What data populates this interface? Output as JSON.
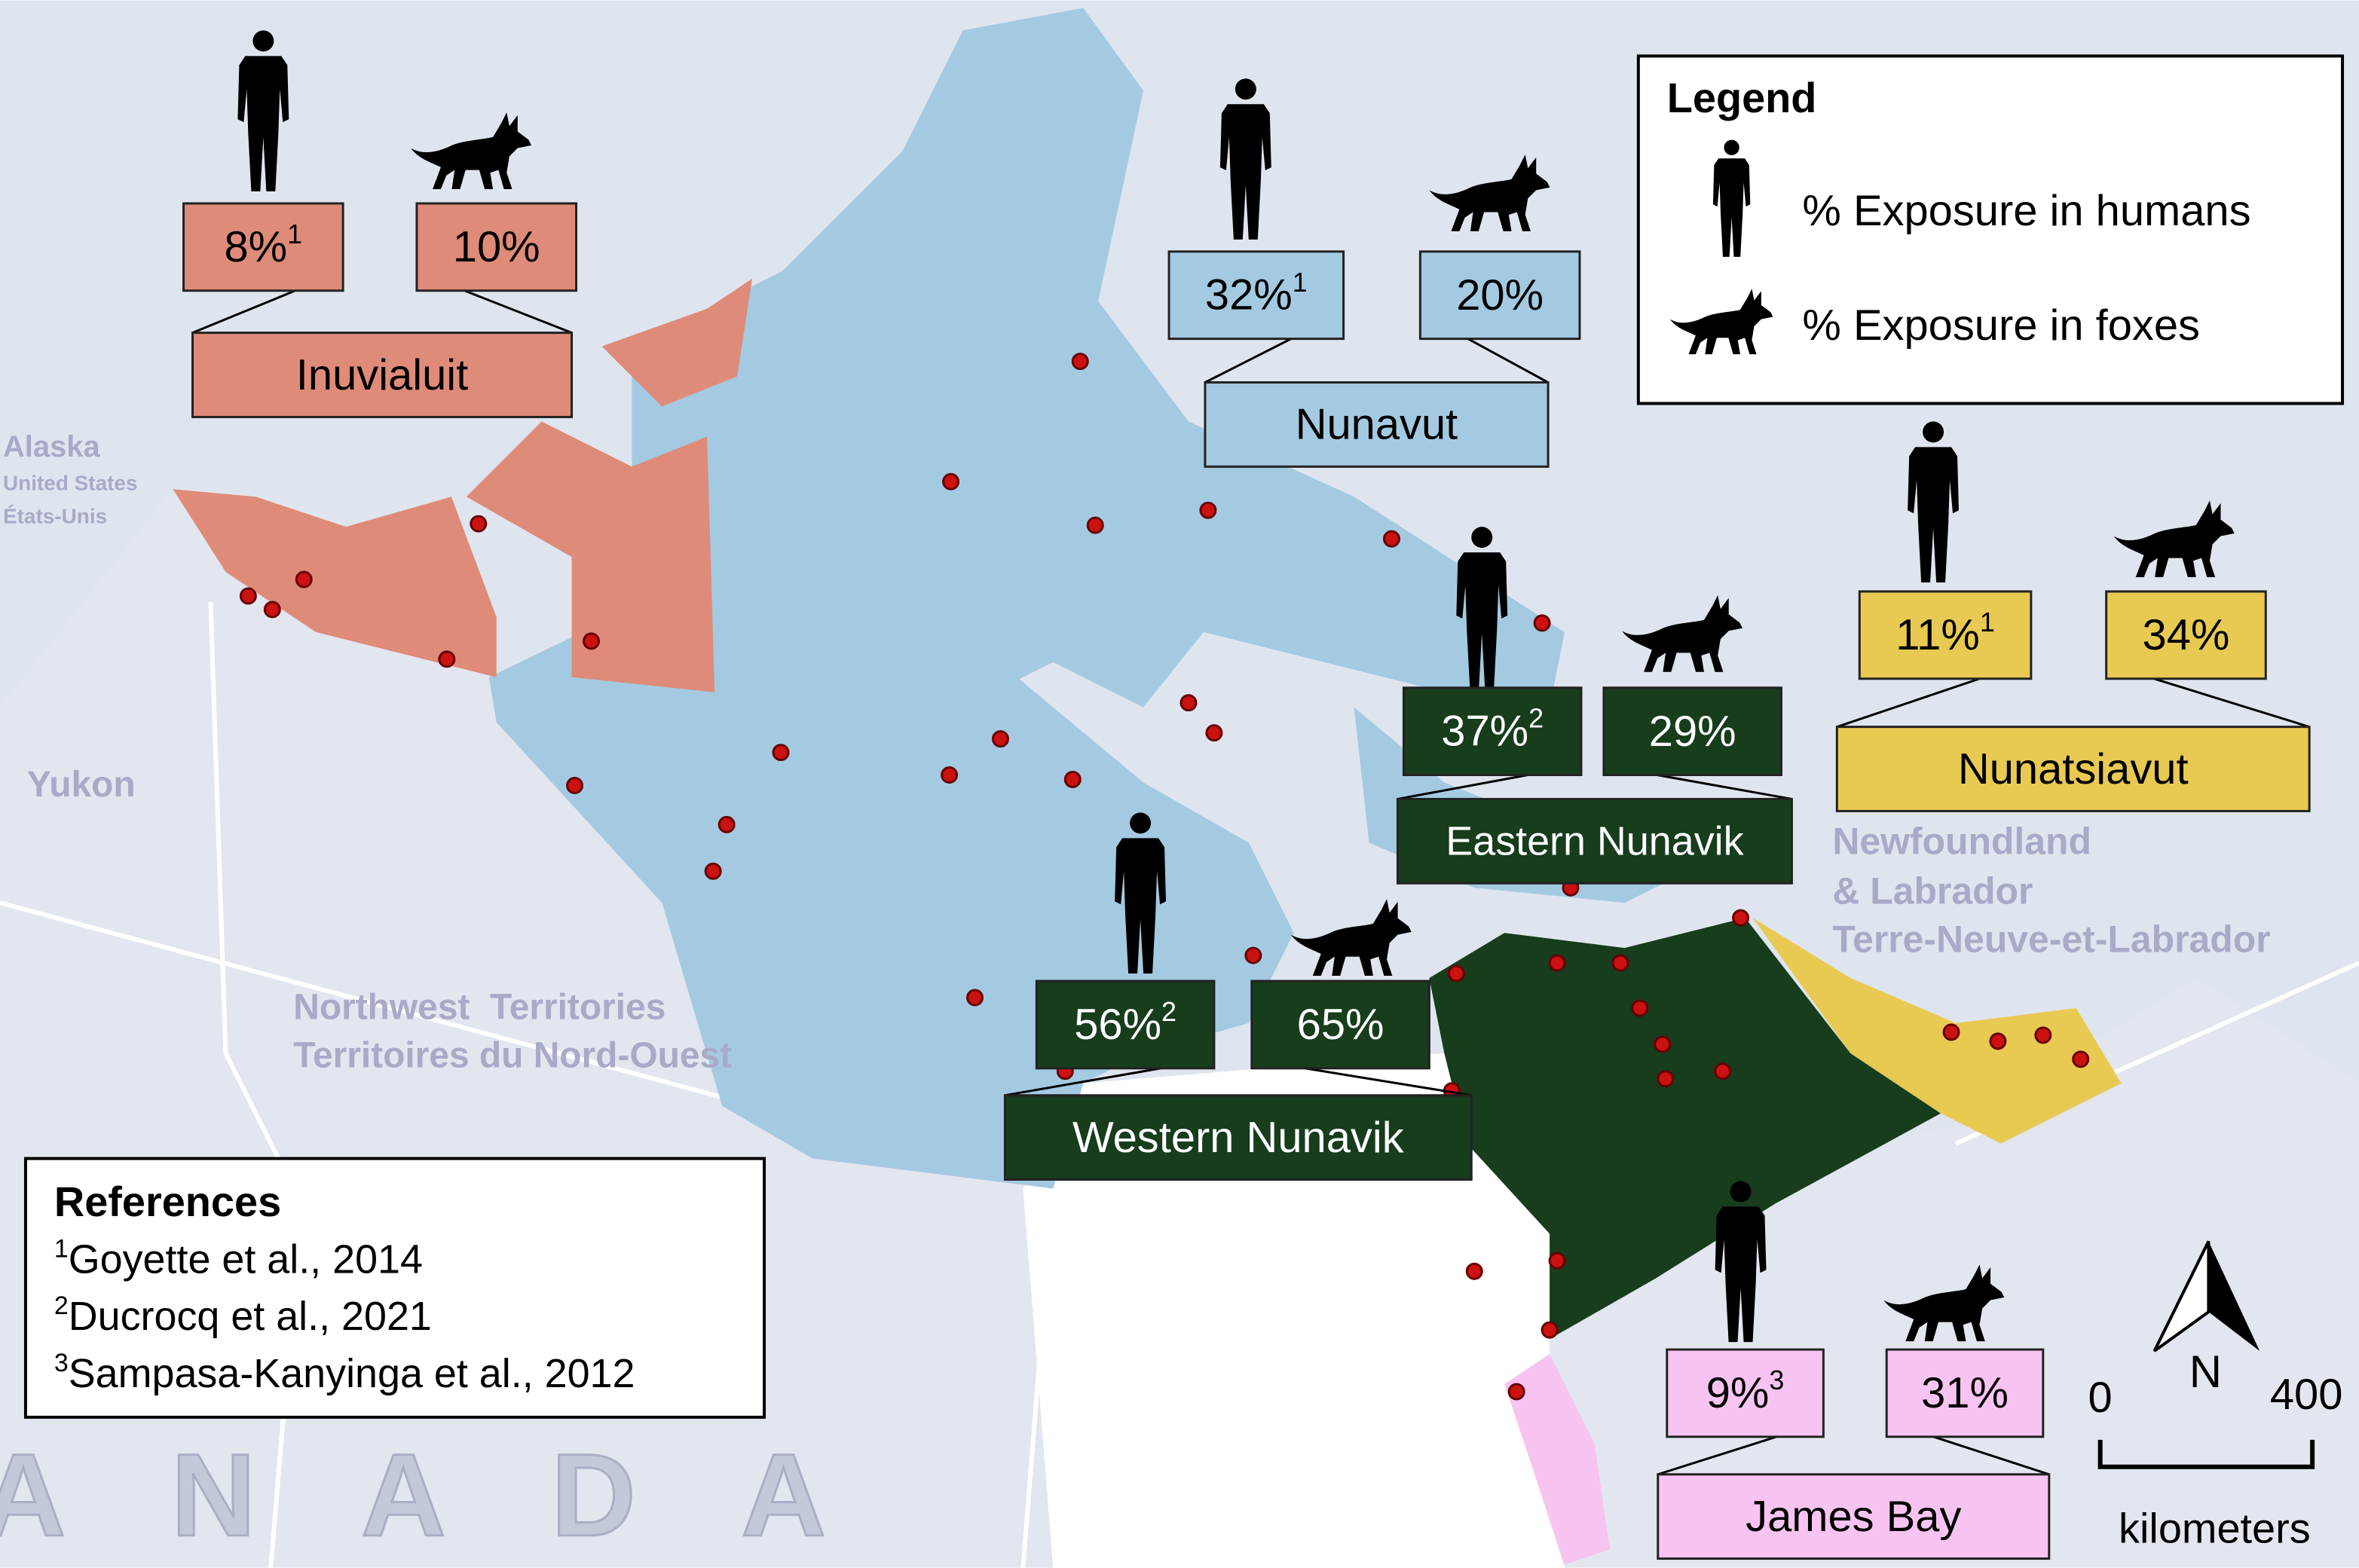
{
  "map_labels": {
    "alaska": "Alaska",
    "united_states": "United States",
    "etats_unis": "États-Unis",
    "yukon": "Yukon",
    "nwt_en": "Northwest  Territories",
    "nwt_fr": "Territoires du Nord-Ouest",
    "nl_line1": "Newfoundland",
    "nl_line2": "& Labrador",
    "nl_fr": "Terre-Neuve-et-Labrador",
    "country": "CANADA"
  },
  "regions": [
    {
      "name": "Inuvialuit",
      "human": "8%",
      "human_ref": "1",
      "fox": "10%"
    },
    {
      "name": "Nunavut",
      "human": "32%",
      "human_ref": "1",
      "fox": "20%"
    },
    {
      "name": "Eastern Nunavik",
      "human": "37%",
      "human_ref": "2",
      "fox": "29%"
    },
    {
      "name": "Western Nunavik",
      "human": "56%",
      "human_ref": "2",
      "fox": "65%"
    },
    {
      "name": "Nunatsiavut",
      "human": "11%",
      "human_ref": "1",
      "fox": "34%"
    },
    {
      "name": "James Bay",
      "human": "9%",
      "human_ref": "3",
      "fox": "31%"
    }
  ],
  "legend": {
    "title": "Legend",
    "human": "% Exposure in humans",
    "fox": "% Exposure in foxes"
  },
  "references": {
    "title": "References",
    "items": [
      {
        "ref": "1",
        "text": "Goyette et al., 2014"
      },
      {
        "ref": "2",
        "text": "Ducrocq et al., 2021"
      },
      {
        "ref": "3",
        "text": "Sampasa-Kanyinga et al., 2012"
      }
    ]
  },
  "scale": {
    "start": "0",
    "end": "400",
    "unit": "kilometers",
    "north": "N"
  }
}
